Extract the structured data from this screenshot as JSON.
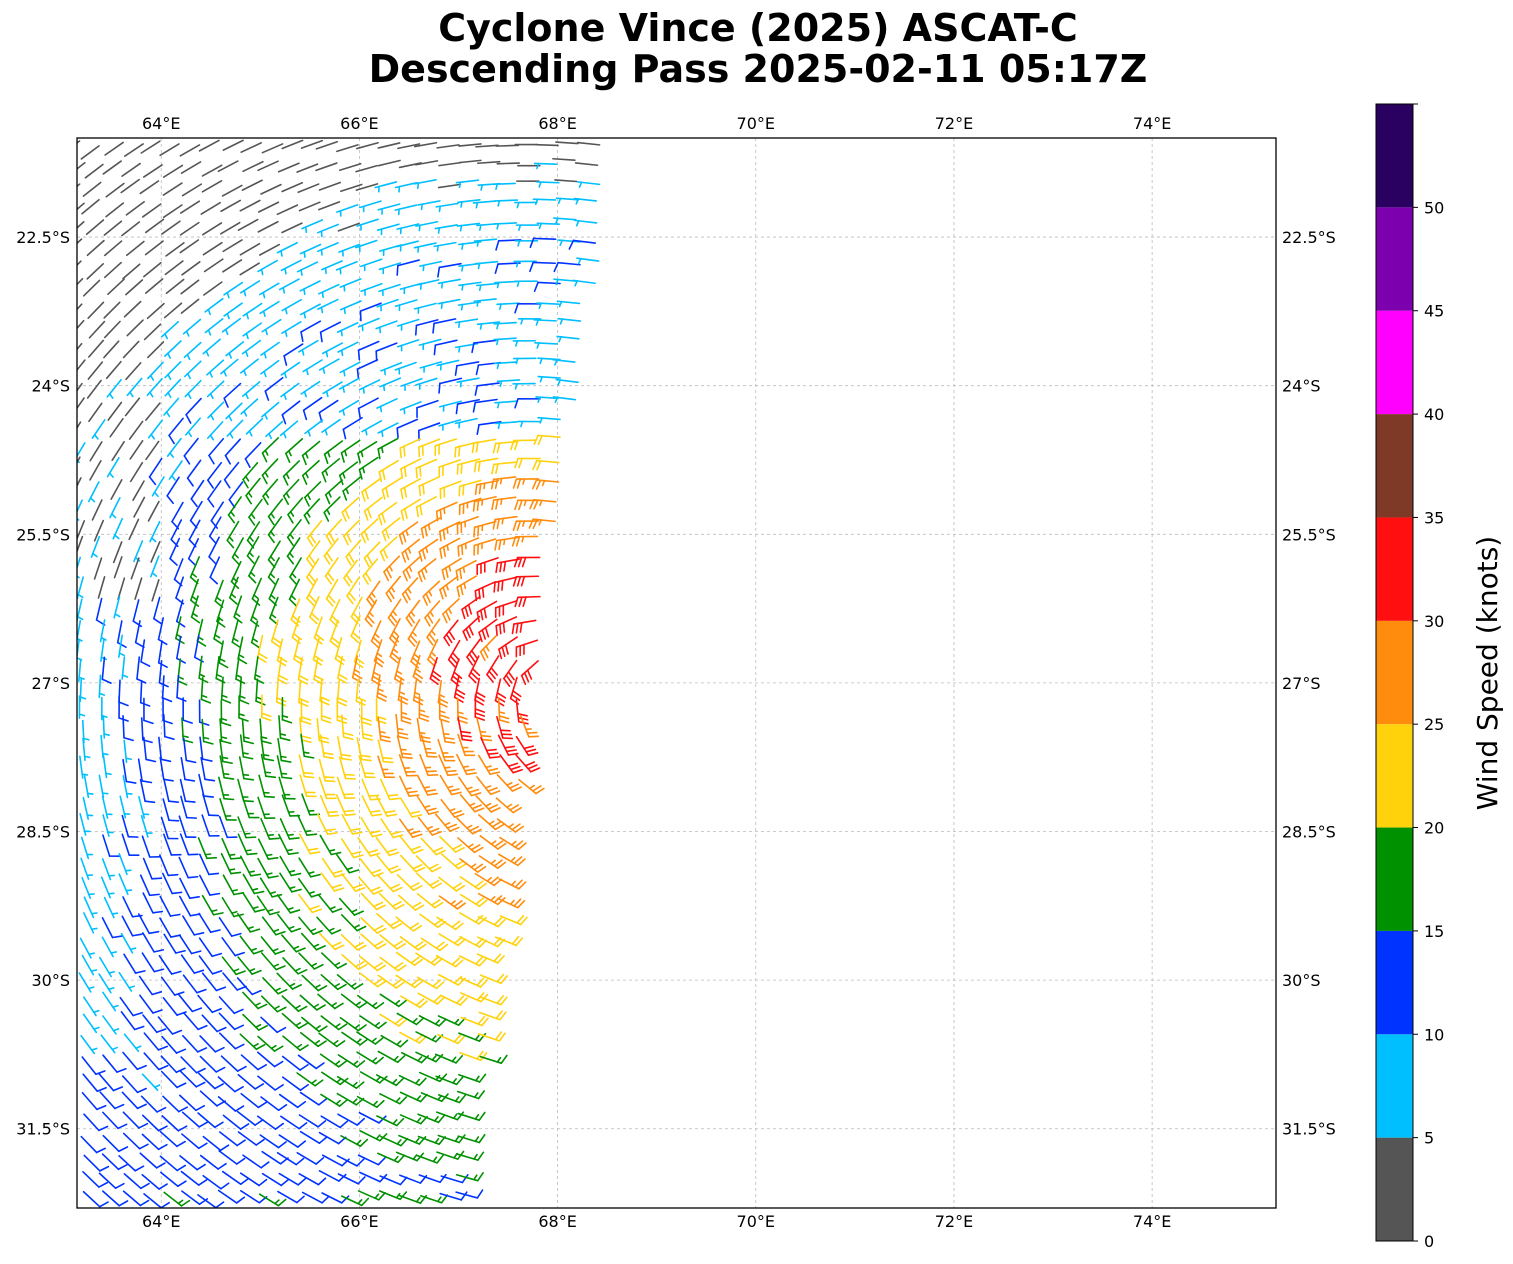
{
  "title": {
    "line1": "Cyclone Vince (2025) ASCAT-C",
    "line2": "Descending Pass 2025-02-11 05:17Z"
  },
  "map": {
    "lon_range": [
      63.15,
      75.25
    ],
    "lat_range": [
      -32.3,
      -21.5
    ],
    "gridlines": true,
    "lon_ticks": [
      64,
      66,
      68,
      70,
      72,
      74
    ],
    "lon_tick_labels": [
      "64°E",
      "66°E",
      "68°E",
      "70°E",
      "72°E",
      "74°E"
    ],
    "lat_ticks": [
      -22.5,
      -24,
      -25.5,
      -27,
      -28.5,
      -30,
      -31.5
    ],
    "lat_tick_labels": [
      "22.5°S",
      "24°S",
      "25.5°S",
      "27°S",
      "28.5°S",
      "30°S",
      "31.5°S"
    ]
  },
  "colorbar": {
    "label": "Wind Speed (knots)",
    "bounds": [
      0,
      5,
      10,
      15,
      20,
      25,
      30,
      35,
      40,
      45,
      50,
      55
    ],
    "tick_values": [
      0,
      5,
      10,
      15,
      20,
      25,
      30,
      35,
      40,
      45,
      50
    ],
    "tick_labels": [
      "0",
      "5",
      "10",
      "15",
      "20",
      "25",
      "30",
      "35",
      "40",
      "45",
      "50"
    ],
    "colors": [
      "#555555",
      "#00bfff",
      "#0033ff",
      "#009100",
      "#ffd20c",
      "#ff8c0c",
      "#ff0f0f",
      "#7e3a26",
      "#ff00ff",
      "#7d00ae",
      "#2a0060"
    ]
  },
  "wind_field": {
    "type": "barbs",
    "center_lon": 68.2,
    "center_lat": -26.8,
    "swath_east_edge_top_lon": 68.6,
    "swath_east_edge_bottom_lon": 67.0,
    "swath_west_edge_lon": 63.15
  }
}
